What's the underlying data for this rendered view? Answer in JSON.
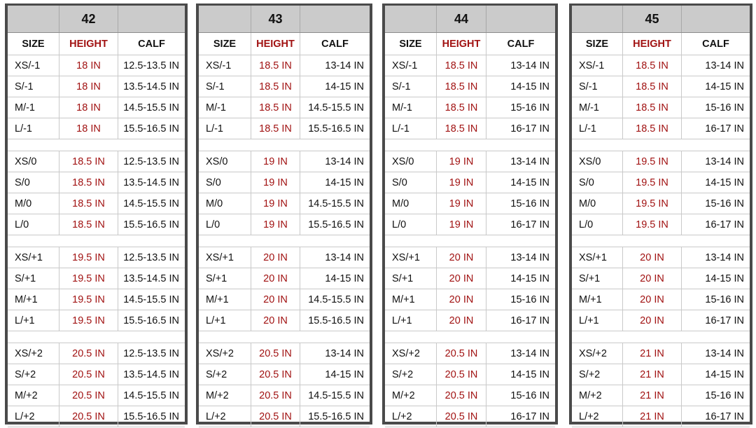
{
  "headers": {
    "size": "SIZE",
    "height": "HEIGHT",
    "calf": "CALF"
  },
  "panels": [
    {
      "title": "42",
      "groups": [
        [
          [
            "XS/-1",
            "18 IN",
            "12.5-13.5 IN"
          ],
          [
            "S/-1",
            "18 IN",
            "13.5-14.5 IN"
          ],
          [
            "M/-1",
            "18 IN",
            "14.5-15.5 IN"
          ],
          [
            "L/-1",
            "18 IN",
            "15.5-16.5 IN"
          ]
        ],
        [
          [
            "XS/0",
            "18.5 IN",
            "12.5-13.5 IN"
          ],
          [
            "S/0",
            "18.5 IN",
            "13.5-14.5 IN"
          ],
          [
            "M/0",
            "18.5 IN",
            "14.5-15.5 IN"
          ],
          [
            "L/0",
            "18.5 IN",
            "15.5-16.5 IN"
          ]
        ],
        [
          [
            "XS/+1",
            "19.5 IN",
            "12.5-13.5 IN"
          ],
          [
            "S/+1",
            "19.5 IN",
            "13.5-14.5 IN"
          ],
          [
            "M/+1",
            "19.5 IN",
            "14.5-15.5 IN"
          ],
          [
            "L/+1",
            "19.5 IN",
            "15.5-16.5 IN"
          ]
        ],
        [
          [
            "XS/+2",
            "20.5 IN",
            "12.5-13.5 IN"
          ],
          [
            "S/+2",
            "20.5 IN",
            "13.5-14.5 IN"
          ],
          [
            "M/+2",
            "20.5 IN",
            "14.5-15.5 IN"
          ],
          [
            "L/+2",
            "20.5 IN",
            "15.5-16.5 IN"
          ]
        ]
      ]
    },
    {
      "title": "43",
      "groups": [
        [
          [
            "XS/-1",
            "18.5 IN",
            "13-14 IN"
          ],
          [
            "S/-1",
            "18.5 IN",
            "14-15 IN"
          ],
          [
            "M/-1",
            "18.5 IN",
            "14.5-15.5 IN"
          ],
          [
            "L/-1",
            "18.5 IN",
            "15.5-16.5 IN"
          ]
        ],
        [
          [
            "XS/0",
            "19 IN",
            "13-14 IN"
          ],
          [
            "S/0",
            "19 IN",
            "14-15 IN"
          ],
          [
            "M/0",
            "19 IN",
            "14.5-15.5 IN"
          ],
          [
            "L/0",
            "19 IN",
            "15.5-16.5 IN"
          ]
        ],
        [
          [
            "XS/+1",
            "20 IN",
            "13-14 IN"
          ],
          [
            "S/+1",
            "20 IN",
            "14-15 IN"
          ],
          [
            "M/+1",
            "20 IN",
            "14.5-15.5 IN"
          ],
          [
            "L/+1",
            "20 IN",
            "15.5-16.5 IN"
          ]
        ],
        [
          [
            "XS/+2",
            "20.5 IN",
            "13-14 IN"
          ],
          [
            "S/+2",
            "20.5 IN",
            "14-15 IN"
          ],
          [
            "M/+2",
            "20.5 IN",
            "14.5-15.5 IN"
          ],
          [
            "L/+2",
            "20.5 IN",
            "15.5-16.5 IN"
          ]
        ]
      ]
    },
    {
      "title": "44",
      "groups": [
        [
          [
            "XS/-1",
            "18.5 IN",
            "13-14 IN"
          ],
          [
            "S/-1",
            "18.5 IN",
            "14-15 IN"
          ],
          [
            "M/-1",
            "18.5 IN",
            "15-16 IN"
          ],
          [
            "L/-1",
            "18.5 IN",
            "16-17 IN"
          ]
        ],
        [
          [
            "XS/0",
            "19 IN",
            "13-14 IN"
          ],
          [
            "S/0",
            "19 IN",
            "14-15 IN"
          ],
          [
            "M/0",
            "19 IN",
            "15-16 IN"
          ],
          [
            "L/0",
            "19 IN",
            "16-17 IN"
          ]
        ],
        [
          [
            "XS/+1",
            "20 IN",
            "13-14 IN"
          ],
          [
            "S/+1",
            "20 IN",
            "14-15 IN"
          ],
          [
            "M/+1",
            "20 IN",
            "15-16 IN"
          ],
          [
            "L/+1",
            "20 IN",
            "16-17 IN"
          ]
        ],
        [
          [
            "XS/+2",
            "20.5 IN",
            "13-14 IN"
          ],
          [
            "S/+2",
            "20.5 IN",
            "14-15 IN"
          ],
          [
            "M/+2",
            "20.5 IN",
            "15-16 IN"
          ],
          [
            "L/+2",
            "20.5 IN",
            "16-17 IN"
          ]
        ]
      ]
    },
    {
      "title": "45",
      "groups": [
        [
          [
            "XS/-1",
            "18.5 IN",
            "13-14 IN"
          ],
          [
            "S/-1",
            "18.5 IN",
            "14-15 IN"
          ],
          [
            "M/-1",
            "18.5 IN",
            "15-16 IN"
          ],
          [
            "L/-1",
            "18.5 IN",
            "16-17 IN"
          ]
        ],
        [
          [
            "XS/0",
            "19.5 IN",
            "13-14 IN"
          ],
          [
            "S/0",
            "19.5 IN",
            "14-15 IN"
          ],
          [
            "M/0",
            "19.5 IN",
            "15-16 IN"
          ],
          [
            "L/0",
            "19.5 IN",
            "16-17 IN"
          ]
        ],
        [
          [
            "XS/+1",
            "20 IN",
            "13-14 IN"
          ],
          [
            "S/+1",
            "20 IN",
            "14-15 IN"
          ],
          [
            "M/+1",
            "20 IN",
            "15-16 IN"
          ],
          [
            "L/+1",
            "20 IN",
            "16-17 IN"
          ]
        ],
        [
          [
            "XS/+2",
            "21 IN",
            "13-14 IN"
          ],
          [
            "S/+2",
            "21 IN",
            "14-15 IN"
          ],
          [
            "M/+2",
            "21 IN",
            "15-16 IN"
          ],
          [
            "L/+2",
            "21 IN",
            "16-17 IN"
          ]
        ]
      ]
    }
  ]
}
